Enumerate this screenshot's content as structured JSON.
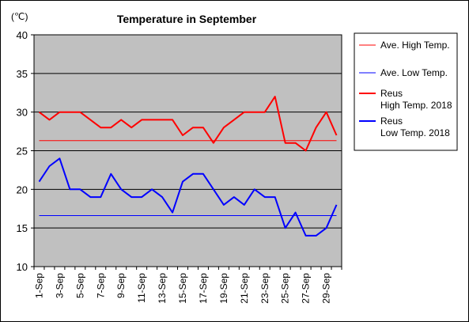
{
  "chart_data": {
    "type": "line",
    "title": "Temperature in September",
    "unit_label": "(℃)",
    "x": [
      "1-Sep",
      "2-Sep",
      "3-Sep",
      "4-Sep",
      "5-Sep",
      "6-Sep",
      "7-Sep",
      "8-Sep",
      "9-Sep",
      "10-Sep",
      "11-Sep",
      "12-Sep",
      "13-Sep",
      "14-Sep",
      "15-Sep",
      "16-Sep",
      "17-Sep",
      "18-Sep",
      "19-Sep",
      "20-Sep",
      "21-Sep",
      "22-Sep",
      "23-Sep",
      "24-Sep",
      "25-Sep",
      "26-Sep",
      "27-Sep",
      "28-Sep",
      "29-Sep",
      "30-Sep"
    ],
    "x_tick_labels": [
      "1-Sep",
      "3-Sep",
      "5-Sep",
      "7-Sep",
      "9-Sep",
      "11-Sep",
      "13-Sep",
      "15-Sep",
      "17-Sep",
      "19-Sep",
      "21-Sep",
      "23-Sep",
      "25-Sep",
      "27-Sep",
      "29-Sep"
    ],
    "ylim": [
      10,
      40
    ],
    "y_ticks": [
      10,
      15,
      20,
      25,
      30,
      35,
      40
    ],
    "grid": true,
    "legend_position": "right",
    "background": "#c0c0c0",
    "series": [
      {
        "name": "Ave. High Temp.",
        "color": "#ff0000",
        "width": 1,
        "values": [
          26.3,
          26.3,
          26.3,
          26.3,
          26.3,
          26.3,
          26.3,
          26.3,
          26.3,
          26.3,
          26.3,
          26.3,
          26.3,
          26.3,
          26.3,
          26.3,
          26.3,
          26.3,
          26.3,
          26.3,
          26.3,
          26.3,
          26.3,
          26.3,
          26.3,
          26.3,
          26.3,
          26.3,
          26.3,
          26.3
        ]
      },
      {
        "name": "Ave. Low Temp.",
        "color": "#0000ff",
        "width": 1,
        "values": [
          16.6,
          16.6,
          16.6,
          16.6,
          16.6,
          16.6,
          16.6,
          16.6,
          16.6,
          16.6,
          16.6,
          16.6,
          16.6,
          16.6,
          16.6,
          16.6,
          16.6,
          16.6,
          16.6,
          16.6,
          16.6,
          16.6,
          16.6,
          16.6,
          16.6,
          16.6,
          16.6,
          16.6,
          16.6,
          16.6
        ]
      },
      {
        "name": "Reus High Temp. 2018",
        "legend_lines": [
          "Reus",
          "High Temp. 2018"
        ],
        "color": "#ff0000",
        "width": 2,
        "values": [
          30,
          29,
          30,
          30,
          30,
          29,
          28,
          28,
          29,
          28,
          29,
          29,
          29,
          29,
          27,
          28,
          28,
          26,
          28,
          29,
          30,
          30,
          30,
          32,
          26,
          26,
          25,
          28,
          30,
          27
        ]
      },
      {
        "name": "Reus Low Temp. 2018",
        "legend_lines": [
          "Reus",
          "Low Temp. 2018"
        ],
        "color": "#0000ff",
        "width": 2,
        "values": [
          21,
          23,
          24,
          20,
          20,
          19,
          19,
          22,
          20,
          19,
          19,
          20,
          19,
          17,
          21,
          22,
          22,
          20,
          18,
          19,
          18,
          20,
          19,
          19,
          15,
          17,
          14,
          14,
          15,
          18
        ]
      }
    ]
  }
}
